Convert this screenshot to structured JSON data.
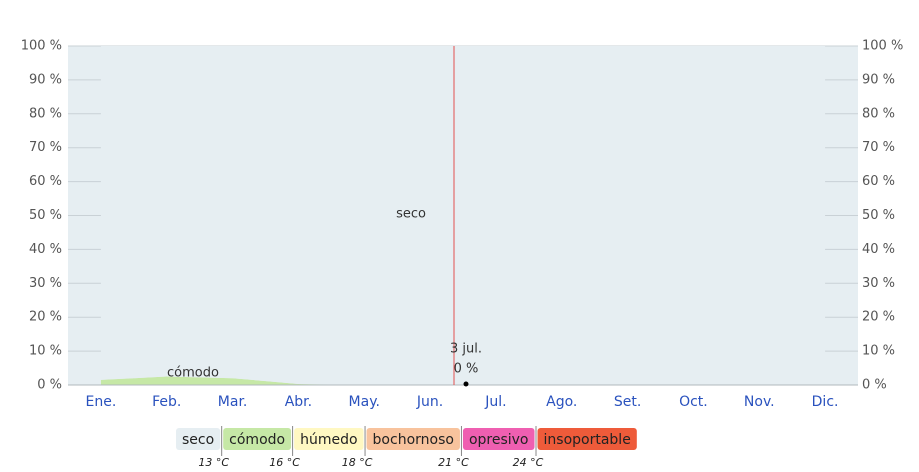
{
  "chart_data": {
    "type": "area",
    "categories": [
      "Ene.",
      "Feb.",
      "Mar.",
      "Abr.",
      "May.",
      "Jun.",
      "Jul.",
      "Ago.",
      "Set.",
      "Oct.",
      "Nov.",
      "Dic."
    ],
    "series": [
      {
        "name": "seco",
        "color": "#e6eef2",
        "values": [
          98.5,
          97.5,
          98,
          99.7,
          100,
          100,
          100,
          100,
          100,
          100,
          100,
          100
        ]
      },
      {
        "name": "cómodo",
        "color": "#c6e8a6",
        "values": [
          1.5,
          2.5,
          2,
          0.3,
          0,
          0,
          0,
          0,
          0,
          0,
          0,
          0
        ]
      },
      {
        "name": "húmedo",
        "color": "#fff8c2",
        "values": [
          0,
          0,
          0,
          0,
          0,
          0,
          0,
          0,
          0,
          0,
          0,
          0
        ]
      },
      {
        "name": "bochornoso",
        "color": "#f8c39d",
        "values": [
          0,
          0,
          0,
          0,
          0,
          0,
          0,
          0,
          0,
          0,
          0,
          0
        ]
      },
      {
        "name": "opresivo",
        "color": "#ef5fb1",
        "values": [
          0,
          0,
          0,
          0,
          0,
          0,
          0,
          0,
          0,
          0,
          0,
          0
        ]
      },
      {
        "name": "insoportable",
        "color": "#ee5b3a",
        "values": [
          0,
          0,
          0,
          0,
          0,
          0,
          0,
          0,
          0,
          0,
          0,
          0
        ]
      }
    ],
    "area_labels": [
      "seco",
      "cómodo"
    ],
    "ylim": [
      0,
      100
    ],
    "yticks": [
      {
        "value": 0,
        "label": "0 %"
      },
      {
        "value": 10,
        "label": "10 %"
      },
      {
        "value": 20,
        "label": "20 %"
      },
      {
        "value": 30,
        "label": "30 %"
      },
      {
        "value": 40,
        "label": "40 %"
      },
      {
        "value": 50,
        "label": "50 %"
      },
      {
        "value": 60,
        "label": "60 %"
      },
      {
        "value": 70,
        "label": "70 %"
      },
      {
        "value": 80,
        "label": "80 %"
      },
      {
        "value": 90,
        "label": "90 %"
      },
      {
        "value": 100,
        "label": "100 %"
      }
    ],
    "grid": true,
    "annotation": {
      "date": "3 jul.",
      "value": 0,
      "value_label": "0 %"
    },
    "thresholds": [
      {
        "value": 13,
        "label": "13 °C"
      },
      {
        "value": 16,
        "label": "16 °C"
      },
      {
        "value": 18,
        "label": "18 °C"
      },
      {
        "value": 21,
        "label": "21 °C"
      },
      {
        "value": 24,
        "label": "24 °C"
      }
    ]
  }
}
